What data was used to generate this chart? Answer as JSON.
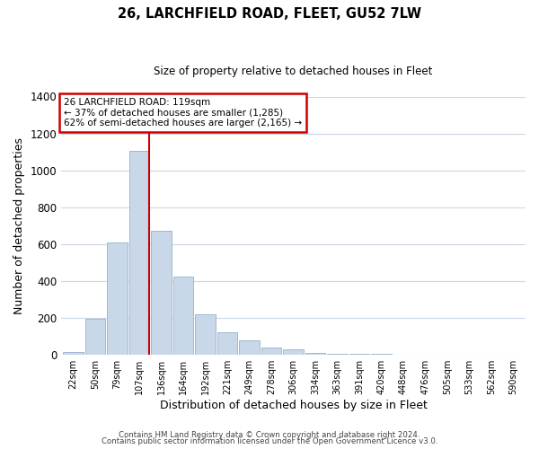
{
  "title": "26, LARCHFIELD ROAD, FLEET, GU52 7LW",
  "subtitle": "Size of property relative to detached houses in Fleet",
  "xlabel": "Distribution of detached houses by size in Fleet",
  "ylabel": "Number of detached properties",
  "bar_labels": [
    "22sqm",
    "50sqm",
    "79sqm",
    "107sqm",
    "136sqm",
    "164sqm",
    "192sqm",
    "221sqm",
    "249sqm",
    "278sqm",
    "306sqm",
    "334sqm",
    "363sqm",
    "391sqm",
    "420sqm",
    "448sqm",
    "476sqm",
    "505sqm",
    "533sqm",
    "562sqm",
    "590sqm"
  ],
  "bar_values": [
    15,
    195,
    610,
    1105,
    670,
    425,
    220,
    120,
    75,
    38,
    27,
    10,
    5,
    2,
    2,
    1,
    0,
    0,
    0,
    0,
    0
  ],
  "bar_color": "#c8d8e8",
  "bar_edge_color": "#a0b8d0",
  "annotation_title": "26 LARCHFIELD ROAD: 119sqm",
  "annotation_line1": "← 37% of detached houses are smaller (1,285)",
  "annotation_line2": "62% of semi-detached houses are larger (2,165) →",
  "annotation_box_color": "#ffffff",
  "annotation_box_edge": "#cc0000",
  "red_line_color": "#cc0000",
  "ylim": [
    0,
    1400
  ],
  "yticks": [
    0,
    200,
    400,
    600,
    800,
    1000,
    1200,
    1400
  ],
  "footer1": "Contains HM Land Registry data © Crown copyright and database right 2024.",
  "footer2": "Contains public sector information licensed under the Open Government Licence v3.0.",
  "background_color": "#ffffff",
  "grid_color": "#ccd8e4"
}
